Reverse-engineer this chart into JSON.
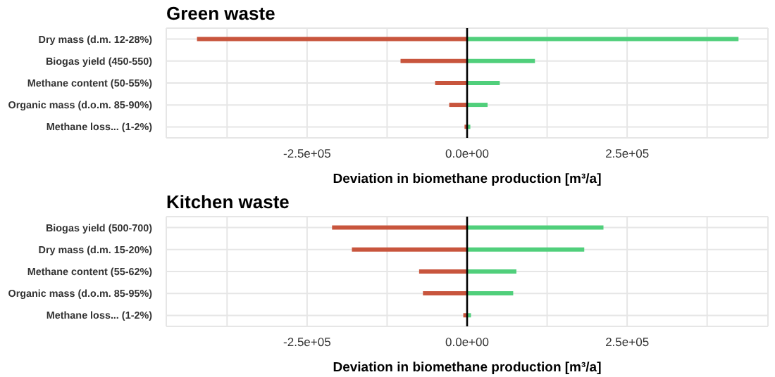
{
  "chart_data": [
    {
      "type": "bar",
      "orientation": "horizontal",
      "stacked": true,
      "title": "Green waste",
      "xlabel": "Deviation in biomethane production [m³/a]",
      "categories": [
        "Dry mass (d.m. 12-28%)",
        "Biogas yield (450-550)",
        "Methane content (50-55%)",
        "Organic mass (d.o.m. 85-90%)",
        "Methane loss... (1-2%)"
      ],
      "series": [
        {
          "color": "#c8553d",
          "values": [
            -422000,
            -104000,
            -50000,
            -28000,
            -4000
          ]
        },
        {
          "color": "#50cf7b",
          "values": [
            424000,
            106000,
            51000,
            32000,
            5000
          ]
        }
      ],
      "xlim": [
        -470000,
        470000
      ],
      "xticks": [
        {
          "value": -375000,
          "label": null
        },
        {
          "value": -250000,
          "label": "-2.5e+05"
        },
        {
          "value": -125000,
          "label": null
        },
        {
          "value": 0,
          "label": "0.0e+00"
        },
        {
          "value": 125000,
          "label": null
        },
        {
          "value": 250000,
          "label": "2.5e+05"
        },
        {
          "value": 375000,
          "label": null
        }
      ],
      "ref_lines": [
        {
          "axis": "x",
          "value": 0,
          "color": "#000000"
        }
      ],
      "grid": true,
      "legend": false
    },
    {
      "type": "bar",
      "orientation": "horizontal",
      "stacked": true,
      "title": "Kitchen waste",
      "xlabel": "Deviation in biomethane production [m³/a]",
      "categories": [
        "Biogas yield (500-700)",
        "Dry mass (d.m. 15-20%)",
        "Methane content (55-62%)",
        "Organic mass (d.o.m. 85-95%)",
        "Methane loss... (1-2%)"
      ],
      "series": [
        {
          "color": "#c8553d",
          "values": [
            -211000,
            -180000,
            -75000,
            -69000,
            -6000
          ]
        },
        {
          "color": "#50cf7b",
          "values": [
            213000,
            183000,
            77000,
            72000,
            6000
          ]
        }
      ],
      "xlim": [
        -470000,
        470000
      ],
      "xticks": [
        {
          "value": -375000,
          "label": null
        },
        {
          "value": -250000,
          "label": "-2.5e+05"
        },
        {
          "value": -125000,
          "label": null
        },
        {
          "value": 0,
          "label": "0.0e+00"
        },
        {
          "value": 125000,
          "label": null
        },
        {
          "value": 250000,
          "label": "2.5e+05"
        },
        {
          "value": 375000,
          "label": null
        }
      ],
      "ref_lines": [
        {
          "axis": "x",
          "value": 0,
          "color": "#000000"
        }
      ],
      "grid": true,
      "legend": false
    }
  ]
}
